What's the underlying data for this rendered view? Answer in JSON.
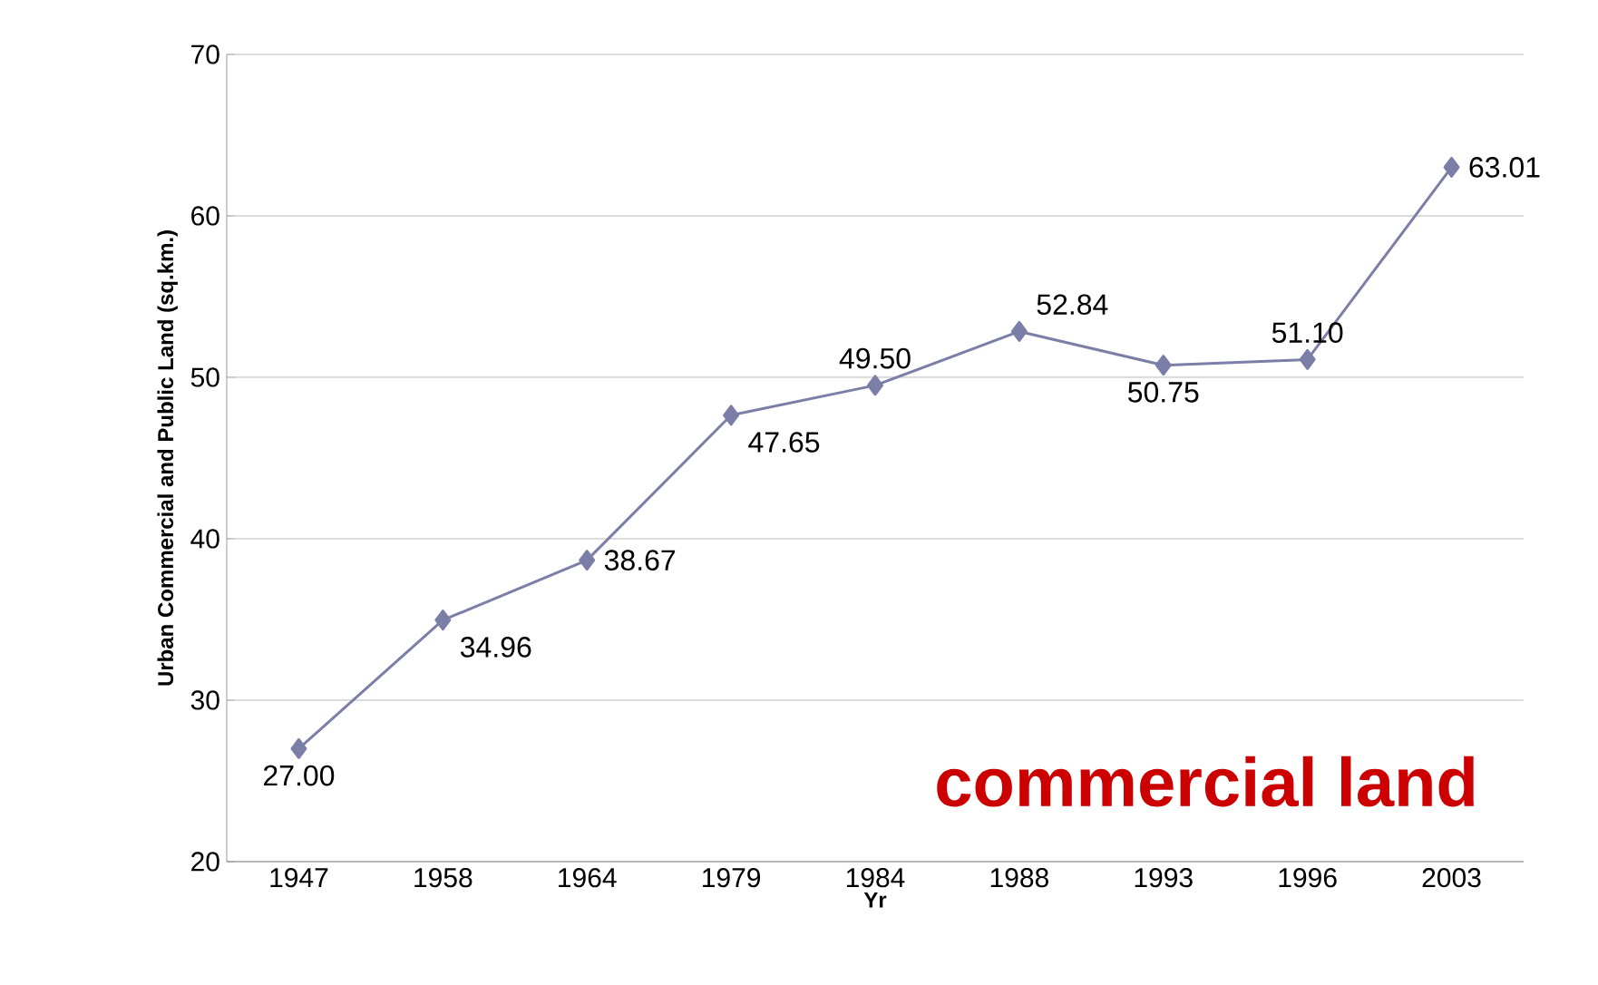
{
  "chart_data": {
    "type": "line",
    "xlabel": "Yr",
    "ylabel": "Urban Commercial and Public Land (sq.km.)",
    "categories": [
      "1947",
      "1958",
      "1964",
      "1979",
      "1984",
      "1988",
      "1993",
      "1996",
      "2003"
    ],
    "series": [
      {
        "color": "#7b7fa8",
        "values": [
          27.0,
          34.96,
          38.67,
          47.65,
          49.5,
          52.84,
          50.75,
          51.1,
          63.01
        ],
        "value_labels": [
          "27.00",
          "34.96",
          "38.67",
          "47.65",
          "49.50",
          "52.84",
          "50.75",
          "51.10",
          "63.01"
        ]
      }
    ],
    "ylim": [
      20,
      70
    ],
    "yticks": [
      20,
      30,
      40,
      50,
      60,
      70
    ],
    "grid": "y",
    "marker": "diamond",
    "line_style": "solid",
    "annotations": [
      "commercial land"
    ]
  }
}
